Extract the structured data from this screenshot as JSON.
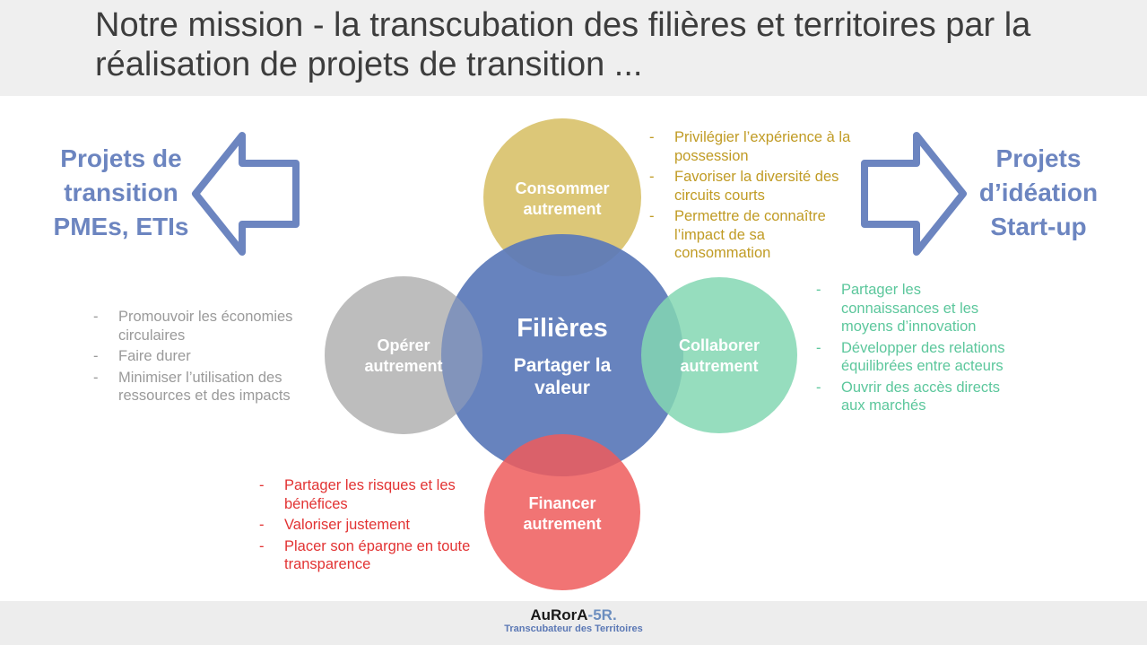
{
  "header": {
    "title": "Notre mission - la transcubation des filières et territoires par la réalisation de projets de transition ..."
  },
  "left_arrow": {
    "label_lines": [
      "Projets de",
      "transition",
      "PMEs, ETIs"
    ],
    "color": "#6c85c0"
  },
  "right_arrow": {
    "label_lines": [
      "Projets",
      "d’idéation",
      "Start-up"
    ],
    "color": "#6c85c0"
  },
  "circles": {
    "center": {
      "title": "Filières",
      "subtitle_lines": [
        "Partager la",
        "valeur"
      ],
      "color": "#5b7ab9"
    },
    "top": {
      "label_lines": [
        "Consommer",
        "autrement"
      ],
      "color": "#dcc778"
    },
    "left": {
      "label_lines": [
        "Opérer",
        "autrement"
      ],
      "color": "#bdbdbd"
    },
    "right": {
      "label_lines": [
        "Collaborer",
        "autrement"
      ],
      "color": "#84d7b3"
    },
    "bottom": {
      "label_lines": [
        "Financer",
        "autrement"
      ],
      "color": "#ee6b6b"
    }
  },
  "lists": {
    "consommer": {
      "color": "#c09b24",
      "items": [
        "Privilégier l’expérience à la possession",
        "Favoriser la diversité des circuits courts",
        "Permettre de connaître l’impact de sa consommation"
      ]
    },
    "operer": {
      "color": "#9a9a9a",
      "items": [
        "Promouvoir les économies circulaires",
        "Faire durer",
        "Minimiser l’utilisation des ressources et des impacts"
      ]
    },
    "collaborer": {
      "color": "#5cc79c",
      "items": [
        "Partager les connaissances et les moyens d’innovation",
        "Développer des relations équilibrées entre acteurs",
        "Ouvrir des accès directs aux marchés"
      ]
    },
    "financer": {
      "color": "#e23333",
      "items": [
        "Partager les risques et les bénéfices",
        "Valoriser justement",
        "Placer son épargne en toute transparence"
      ]
    },
    "bullet": "-"
  },
  "footer": {
    "logo_main": "AuRorA",
    "logo_accent": "-5R.",
    "logo_tagline": "Transcubateur des Territoires"
  }
}
